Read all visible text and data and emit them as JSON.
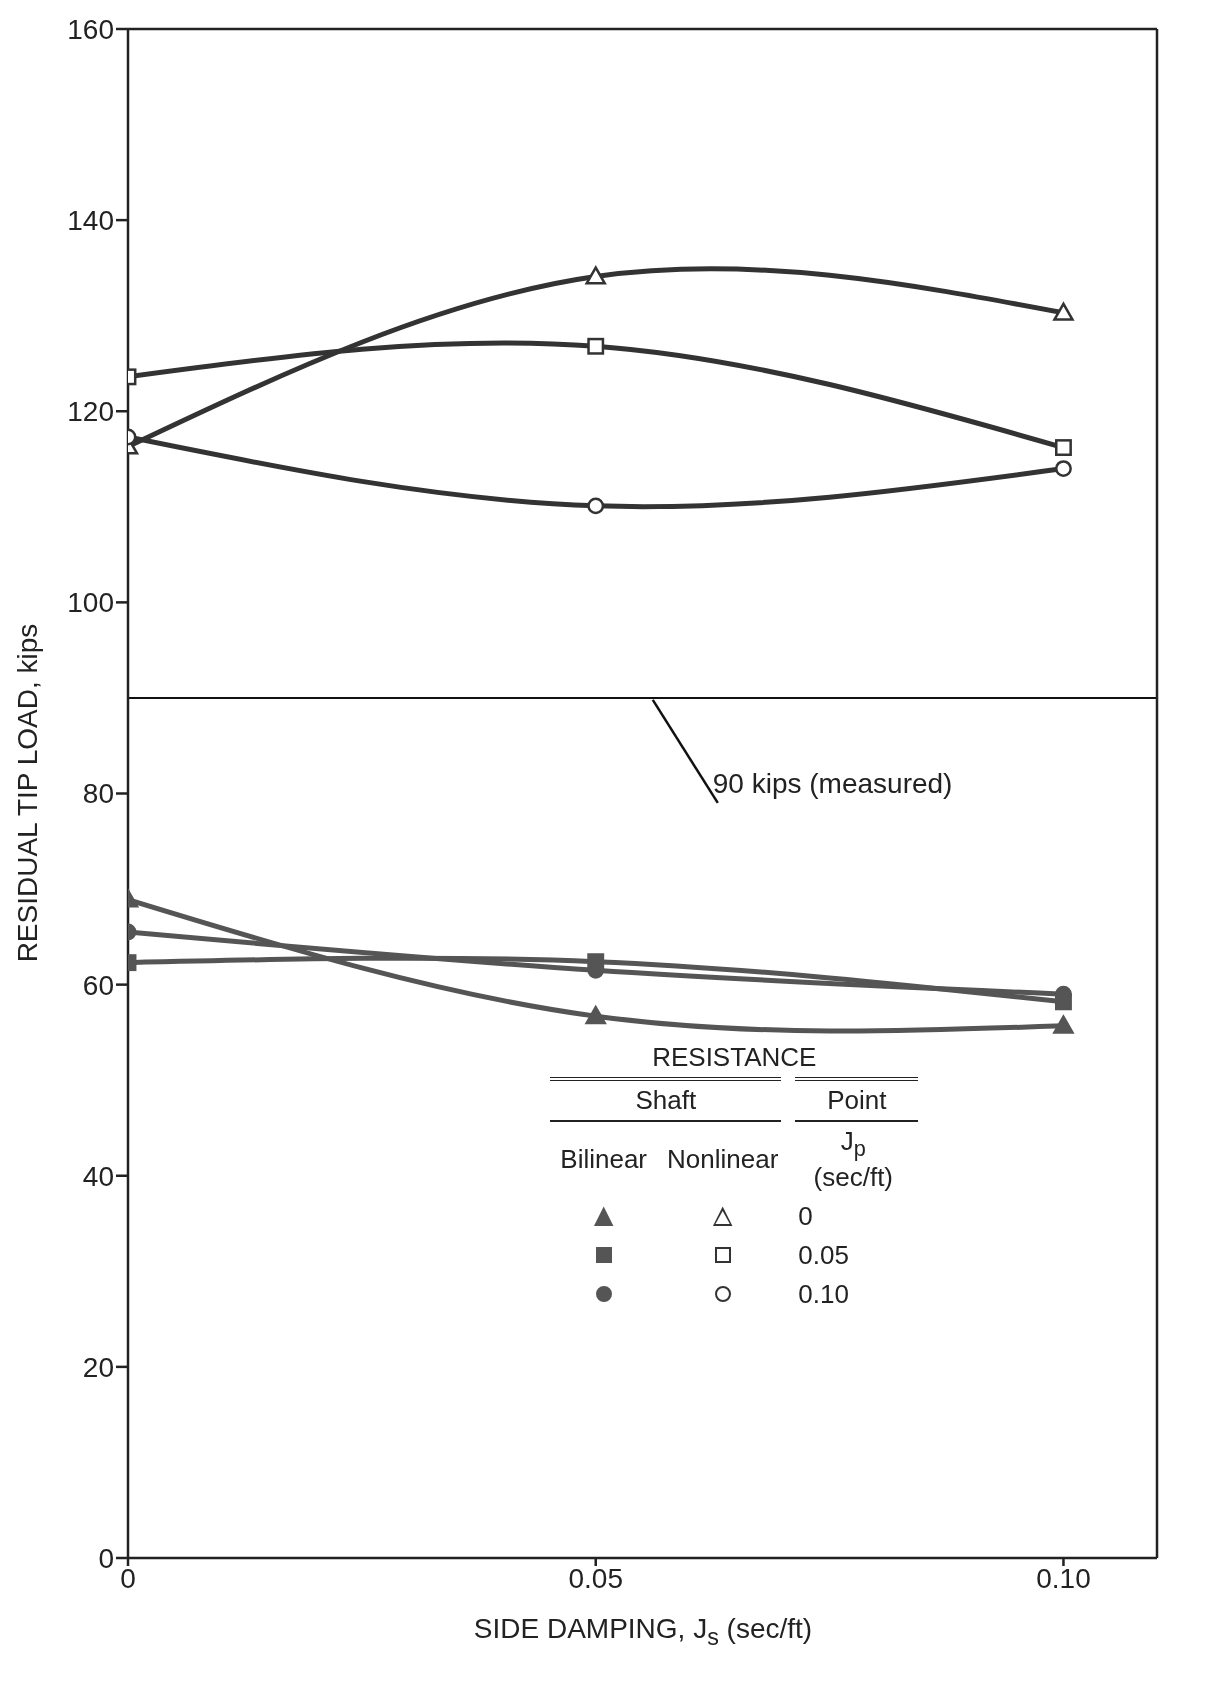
{
  "chart_data": {
    "type": "line",
    "xlabel": "SIDE DAMPING, J$_{s}$ (sec/ft)",
    "ylabel": "RESIDUAL TIP LOAD, kips",
    "legend_title": "RESISTANCE",
    "x": [
      0,
      0.05,
      0.1
    ],
    "xlim": [
      0,
      0.11
    ],
    "xticks": [
      0,
      0.05,
      {
        "value": 0.1,
        "label": "0.10"
      }
    ],
    "ylim": [
      0,
      160
    ],
    "yticks": [
      0,
      20,
      40,
      60,
      80,
      100,
      120,
      140,
      160
    ],
    "grid": false,
    "series": [
      {
        "color": "#333333",
        "marker": "triangle",
        "values": [
          116.3,
          134.1,
          130.3
        ]
      },
      {
        "color": "#333333",
        "marker": "square",
        "values": [
          123.6,
          126.8,
          116.2
        ]
      },
      {
        "color": "#333333",
        "marker": "circle",
        "values": [
          117.3,
          110.1,
          114.0
        ]
      },
      {
        "color": "#555555",
        "marker": "triangle",
        "values": [
          68.9,
          56.7,
          55.7
        ]
      },
      {
        "color": "#555555",
        "marker": "square",
        "values": [
          62.3,
          62.4,
          58.2
        ]
      },
      {
        "color": "#555555",
        "marker": "circle",
        "values": [
          65.5,
          61.5,
          59.0
        ]
      }
    ],
    "ref_lines": [
      {
        "axis": "y",
        "value": 90,
        "label": "90 kips (measured)",
        "color": "#111111"
      }
    ],
    "annotations": [
      "Shaft",
      "Point",
      "Bilinear",
      "Nonlinear",
      "J$_{p}$ (sec/ft)",
      "0",
      "0.05",
      "0.10"
    ]
  }
}
